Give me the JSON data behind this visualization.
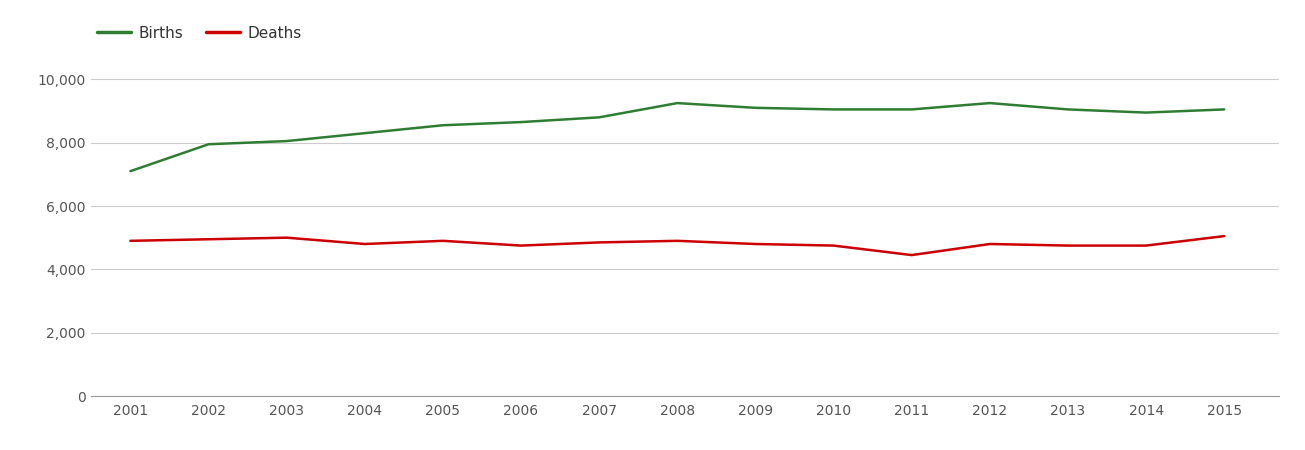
{
  "years": [
    2001,
    2002,
    2003,
    2004,
    2005,
    2006,
    2007,
    2008,
    2009,
    2010,
    2011,
    2012,
    2013,
    2014,
    2015
  ],
  "births": [
    7100,
    7950,
    8050,
    8300,
    8550,
    8650,
    8800,
    9250,
    9100,
    9050,
    9050,
    9250,
    9050,
    8950,
    9050
  ],
  "deaths": [
    4900,
    4950,
    5000,
    4800,
    4900,
    4750,
    4850,
    4900,
    4800,
    4750,
    4450,
    4800,
    4750,
    4750,
    5050
  ],
  "births_color": "#2e7d32",
  "deaths_color": "#cc0000",
  "background_color": "#ffffff",
  "grid_color": "#cccccc",
  "births_label": "Births",
  "deaths_label": "Deaths",
  "ylim": [
    0,
    10800
  ],
  "yticks": [
    0,
    2000,
    4000,
    6000,
    8000,
    10000
  ],
  "xlim": [
    2000.5,
    2015.7
  ],
  "line_width": 1.8
}
